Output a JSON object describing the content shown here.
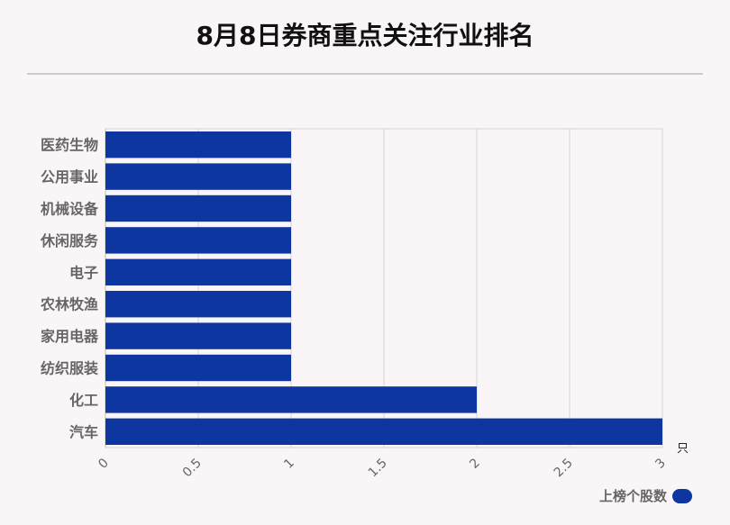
{
  "title": "8月8日券商重点关注行业排名",
  "chart_data": {
    "type": "bar",
    "orientation": "horizontal",
    "categories": [
      "医药生物",
      "公用事业",
      "机械设备",
      "休闲服务",
      "电子",
      "农林牧渔",
      "家用电器",
      "纺织服装",
      "化工",
      "汽车"
    ],
    "series": [
      {
        "name": "上榜个股数",
        "values": [
          1,
          1,
          1,
          1,
          1,
          1,
          1,
          1,
          2,
          3
        ],
        "color": "#0d36a0"
      }
    ],
    "xlim": [
      0,
      3
    ],
    "xticks": [
      "0",
      "0.5",
      "1",
      "1.5",
      "2",
      "2.5",
      "3"
    ],
    "xunit": "只",
    "grid": true,
    "legend_position": "bottom-right"
  }
}
